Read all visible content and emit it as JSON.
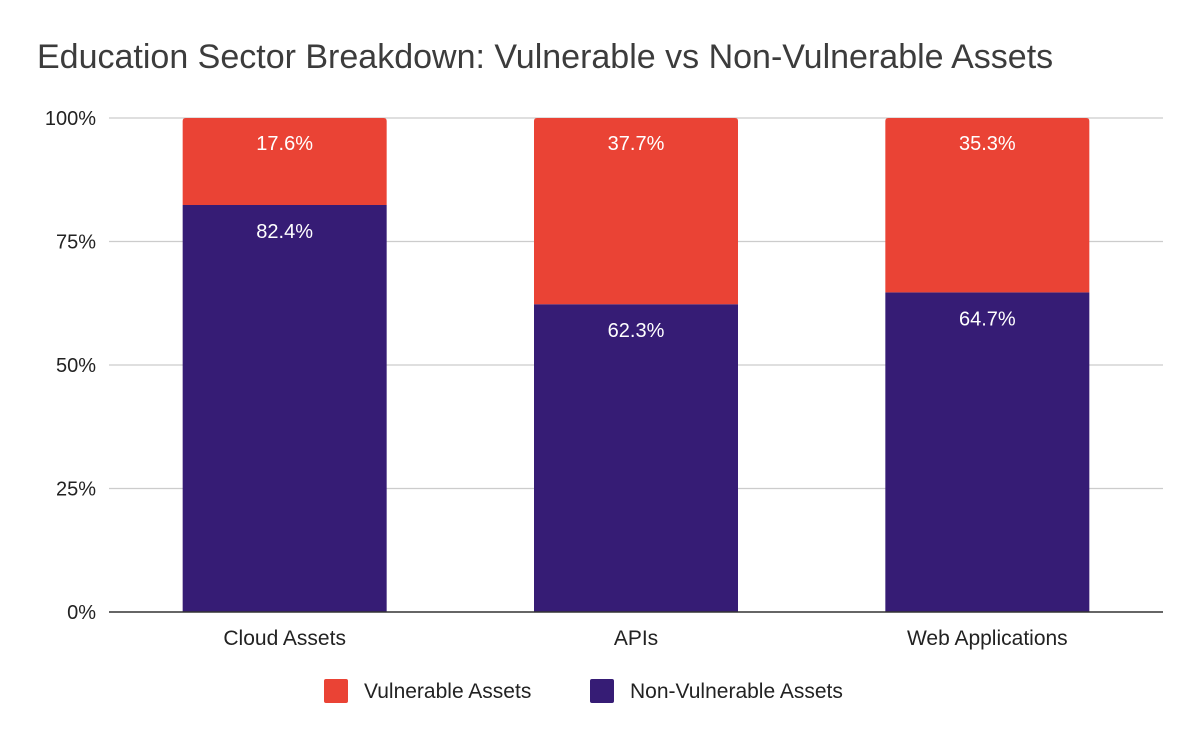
{
  "chart_data": {
    "type": "bar",
    "stacked": true,
    "percent": true,
    "title": "Education Sector Breakdown: Vulnerable vs Non-Vulnerable Assets",
    "xlabel": "",
    "ylabel": "",
    "categories": [
      "Cloud Assets",
      "APIs",
      "Web Applications"
    ],
    "series": [
      {
        "name": "Non-Vulnerable Assets",
        "values": [
          82.4,
          62.3,
          64.7
        ],
        "labels": [
          "82.4%",
          "62.3%",
          "64.7%"
        ],
        "color": "#361c75"
      },
      {
        "name": "Vulnerable Assets",
        "values": [
          17.6,
          37.7,
          35.3
        ],
        "labels": [
          "17.6%",
          "37.7%",
          "35.3%"
        ],
        "color": "#ea4335"
      }
    ],
    "yticks": [
      {
        "value": 0,
        "label": "0%"
      },
      {
        "value": 25,
        "label": "25%"
      },
      {
        "value": 50,
        "label": "50%"
      },
      {
        "value": 75,
        "label": "75%"
      },
      {
        "value": 100,
        "label": "100%"
      }
    ],
    "ylim": [
      0,
      100
    ],
    "grid": true,
    "legend": {
      "position": "bottom",
      "entries": [
        "Vulnerable Assets",
        "Non-Vulnerable Assets"
      ]
    }
  }
}
